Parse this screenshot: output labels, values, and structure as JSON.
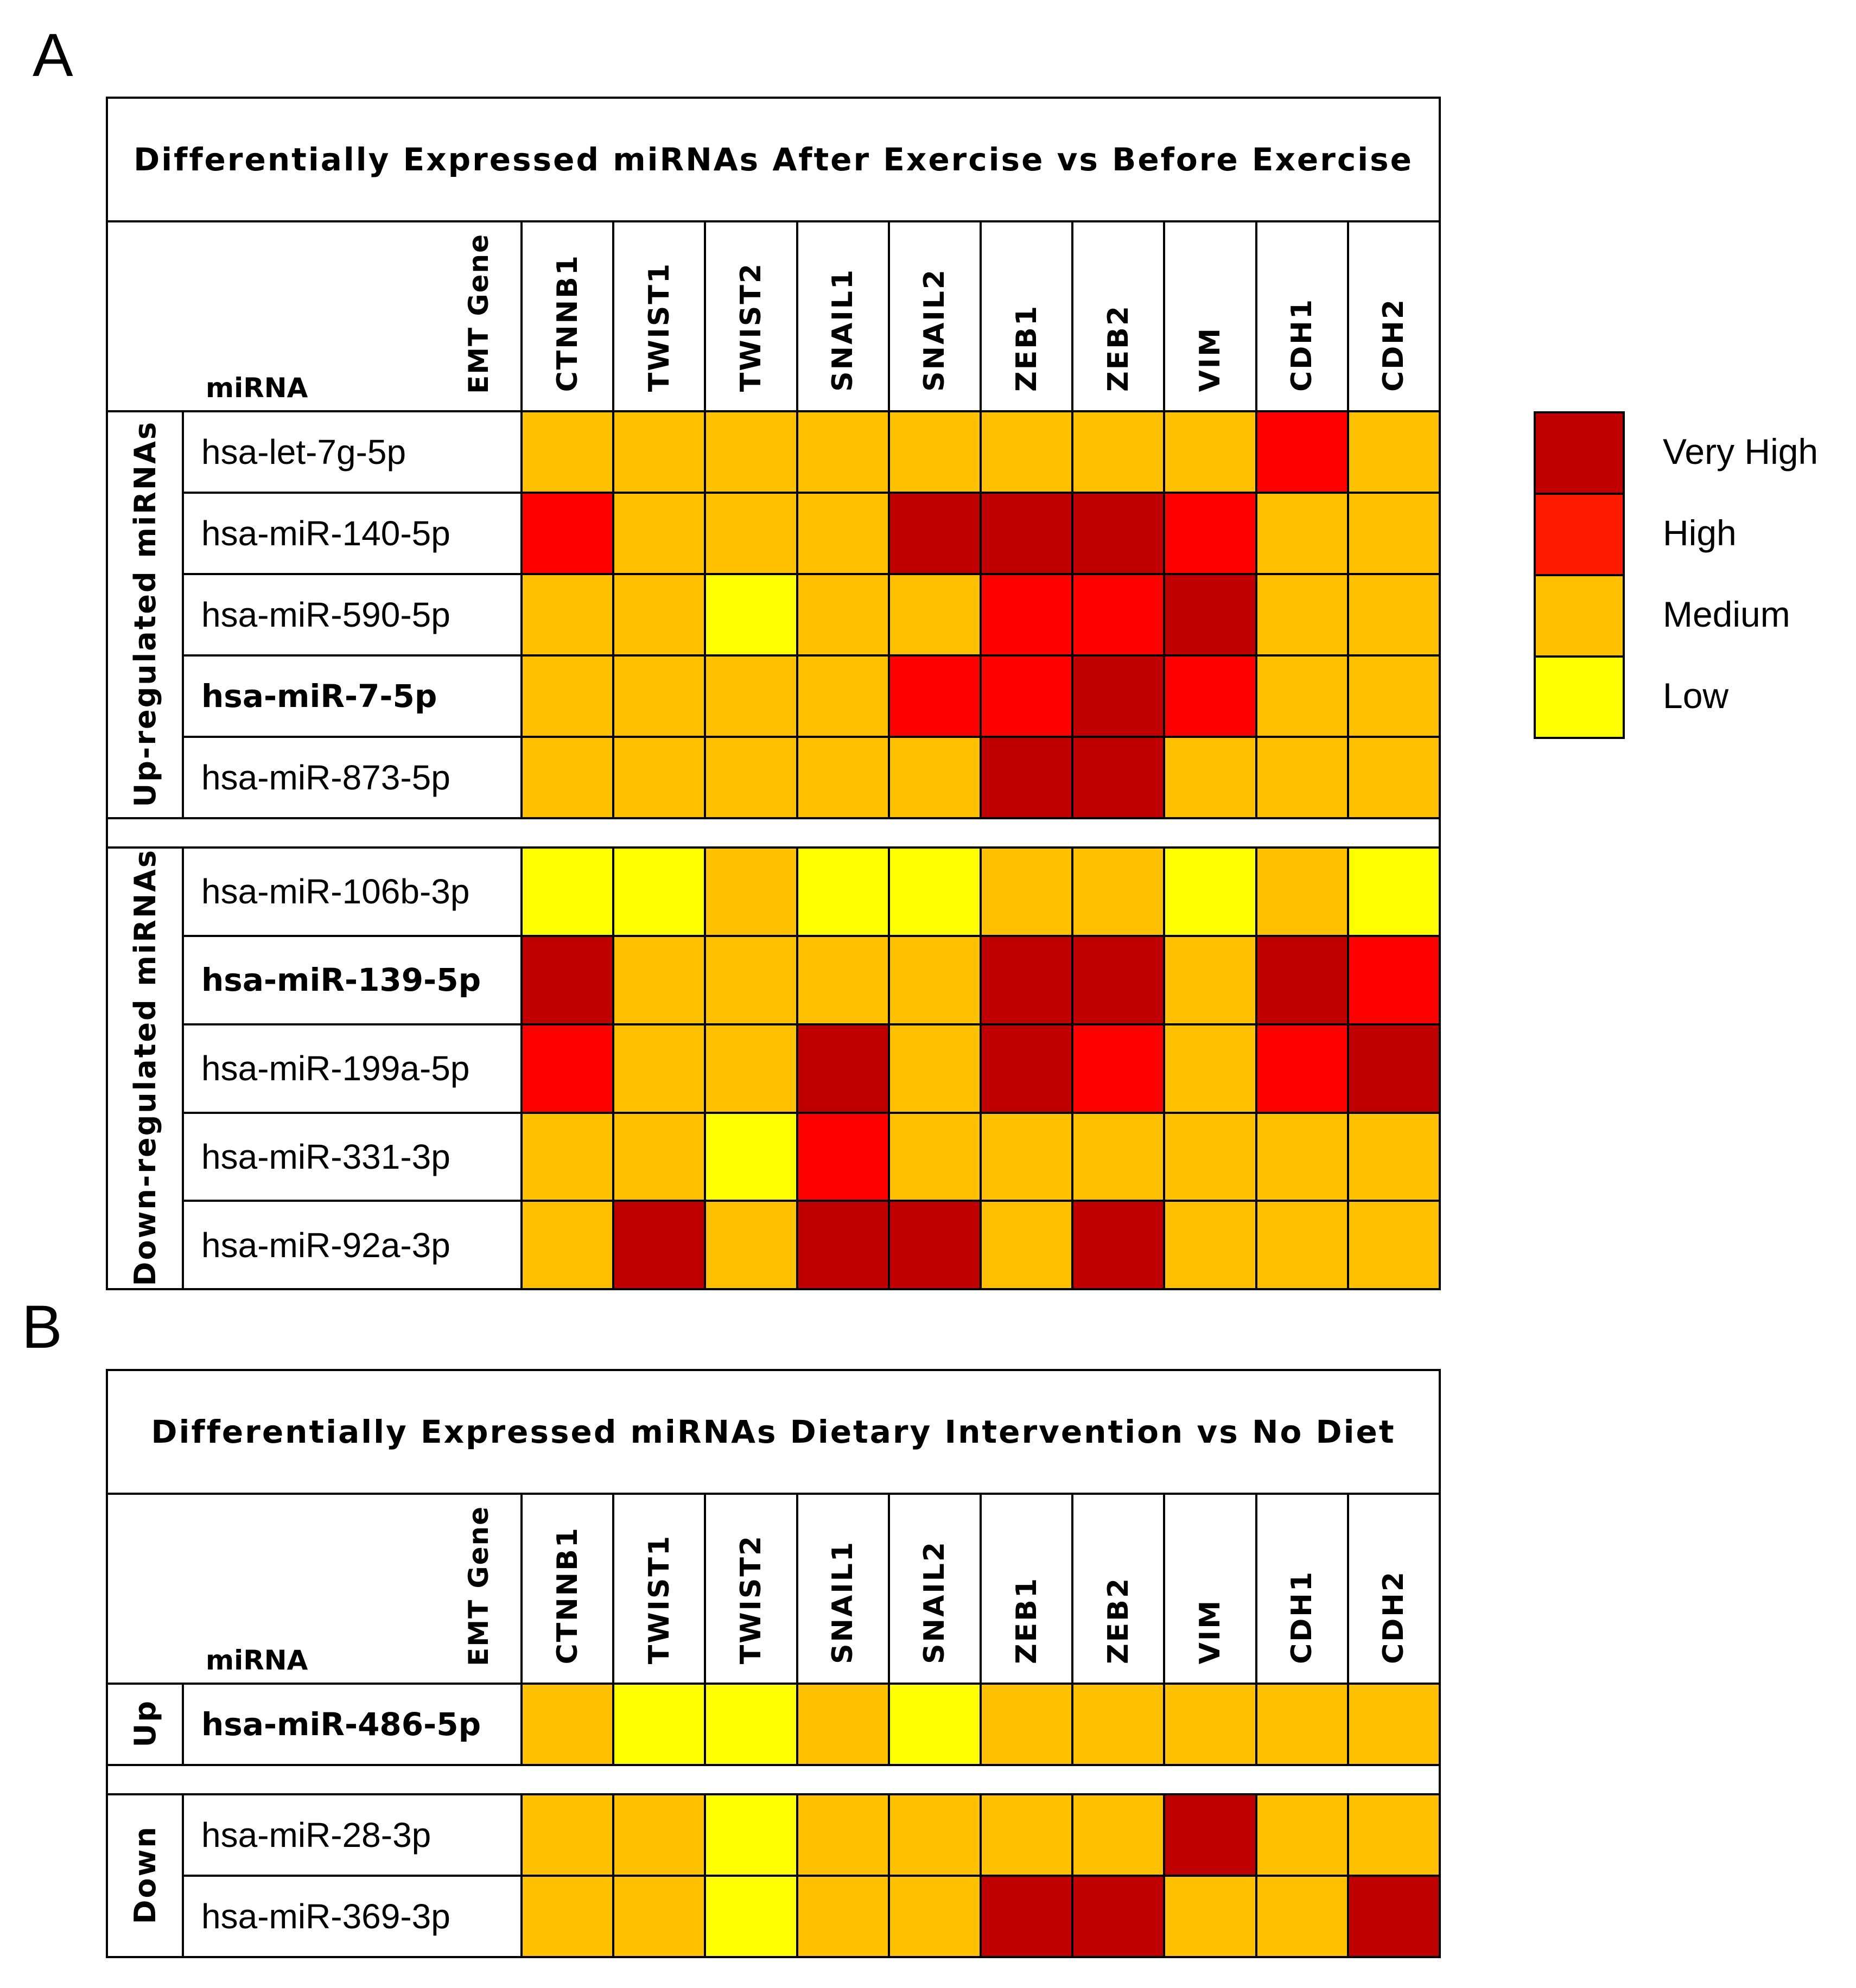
{
  "legend": {
    "levels": [
      {
        "key": "very_high",
        "label": "Very High",
        "color": "#C00000"
      },
      {
        "key": "high",
        "label": "High",
        "color": "#FF1A00"
      },
      {
        "key": "medium",
        "label": "Medium",
        "color": "#FFC000"
      },
      {
        "key": "low",
        "label": "Low",
        "color": "#FFFF00"
      }
    ]
  },
  "colors": {
    "vh": "#C00000",
    "h": "#FF0000",
    "m": "#FFC000",
    "l": "#FFFF00"
  },
  "chart_data": [
    {
      "type": "heatmap",
      "panel_label": "A",
      "title": "Differentially Expressed miRNAs After Exercise vs Before Exercise",
      "column_axis_label": "EMT Gene",
      "row_axis_label": "miRNA",
      "genes": [
        "CTNNB1",
        "TWIST1",
        "TWIST2",
        "SNAIL1",
        "SNAIL2",
        "ZEB1",
        "ZEB2",
        "VIM",
        "CDH1",
        "CDH2"
      ],
      "groups": [
        {
          "name": "Up-regulated miRNAs",
          "rows": [
            {
              "mirna": "hsa-let-7g-5p",
              "bold": false,
              "levels": [
                "m",
                "m",
                "m",
                "m",
                "m",
                "m",
                "m",
                "m",
                "h",
                "m"
              ]
            },
            {
              "mirna": "hsa-miR-140-5p",
              "bold": false,
              "levels": [
                "h",
                "m",
                "m",
                "m",
                "vh",
                "vh",
                "vh",
                "h",
                "m",
                "m"
              ]
            },
            {
              "mirna": "hsa-miR-590-5p",
              "bold": false,
              "levels": [
                "m",
                "m",
                "l",
                "m",
                "m",
                "h",
                "h",
                "vh",
                "m",
                "m"
              ]
            },
            {
              "mirna": "hsa-miR-7-5p",
              "bold": true,
              "levels": [
                "m",
                "m",
                "m",
                "m",
                "h",
                "h",
                "vh",
                "h",
                "m",
                "m"
              ]
            },
            {
              "mirna": "hsa-miR-873-5p",
              "bold": false,
              "levels": [
                "m",
                "m",
                "m",
                "m",
                "m",
                "vh",
                "vh",
                "m",
                "m",
                "m"
              ]
            }
          ]
        },
        {
          "name": "Down-regulated miRNAs",
          "rows": [
            {
              "mirna": "hsa-miR-106b-3p",
              "bold": false,
              "levels": [
                "l",
                "l",
                "m",
                "l",
                "l",
                "m",
                "m",
                "l",
                "m",
                "l"
              ]
            },
            {
              "mirna": "hsa-miR-139-5p",
              "bold": true,
              "levels": [
                "vh",
                "m",
                "m",
                "m",
                "m",
                "vh",
                "vh",
                "m",
                "vh",
                "h"
              ]
            },
            {
              "mirna": "hsa-miR-199a-5p",
              "bold": false,
              "levels": [
                "h",
                "m",
                "m",
                "vh",
                "m",
                "vh",
                "h",
                "m",
                "h",
                "vh"
              ]
            },
            {
              "mirna": "hsa-miR-331-3p",
              "bold": false,
              "levels": [
                "m",
                "m",
                "l",
                "h",
                "m",
                "m",
                "m",
                "m",
                "m",
                "m"
              ]
            },
            {
              "mirna": "hsa-miR-92a-3p",
              "bold": false,
              "levels": [
                "m",
                "vh",
                "m",
                "vh",
                "vh",
                "m",
                "vh",
                "m",
                "m",
                "m"
              ]
            }
          ]
        }
      ]
    },
    {
      "type": "heatmap",
      "panel_label": "B",
      "title": "Differentially Expressed miRNAs Dietary Intervention vs No Diet",
      "column_axis_label": "EMT Gene",
      "row_axis_label": "miRNA",
      "genes": [
        "CTNNB1",
        "TWIST1",
        "TWIST2",
        "SNAIL1",
        "SNAIL2",
        "ZEB1",
        "ZEB2",
        "VIM",
        "CDH1",
        "CDH2"
      ],
      "groups": [
        {
          "name": "Up",
          "rows": [
            {
              "mirna": "hsa-miR-486-5p",
              "bold": true,
              "levels": [
                "m",
                "l",
                "l",
                "m",
                "l",
                "m",
                "m",
                "m",
                "m",
                "m"
              ]
            }
          ]
        },
        {
          "name": "Down",
          "rows": [
            {
              "mirna": "hsa-miR-28-3p",
              "bold": false,
              "levels": [
                "m",
                "m",
                "l",
                "m",
                "m",
                "m",
                "m",
                "vh",
                "m",
                "m"
              ]
            },
            {
              "mirna": "hsa-miR-369-3p",
              "bold": false,
              "levels": [
                "m",
                "m",
                "l",
                "m",
                "m",
                "vh",
                "vh",
                "m",
                "m",
                "vh"
              ]
            }
          ]
        }
      ]
    }
  ]
}
